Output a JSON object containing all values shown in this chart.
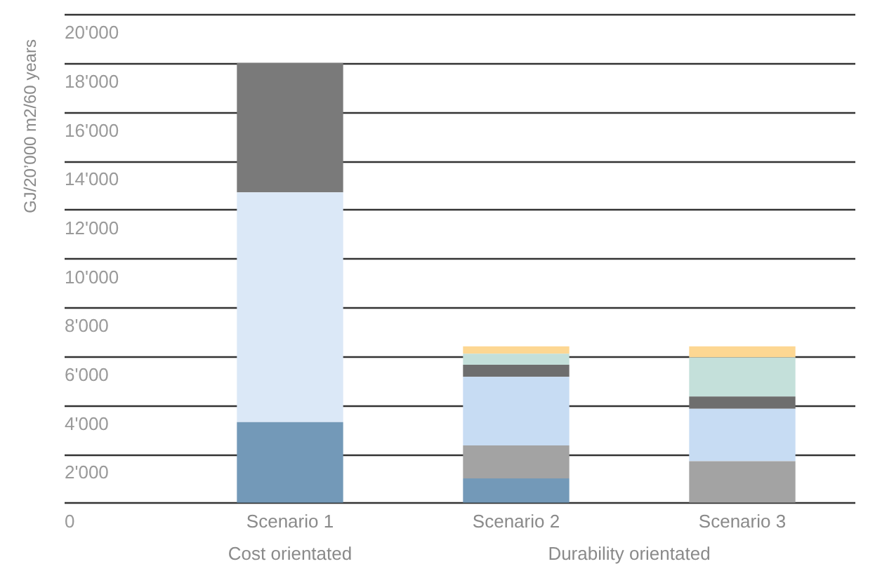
{
  "chart_data": {
    "type": "bar",
    "stacked": true,
    "ylabel": "GJ/20’000 m2/60 years",
    "categories": [
      "Scenario 1",
      "Scenario 2",
      "Scenario 3"
    ],
    "series": [
      {
        "color": "#7399b8",
        "values": [
          3300,
          1000,
          null
        ]
      },
      {
        "color": "#a3a3a3",
        "values": [
          null,
          1350,
          1700
        ]
      },
      {
        "color": "#c7dcf3",
        "colors": [
          "#dbe8f7",
          null,
          null
        ],
        "values": [
          9400,
          2800,
          2150
        ]
      },
      {
        "color": "#6e6e6e",
        "colors": [
          "#7a7a7a",
          null,
          null
        ],
        "values": [
          5300,
          500,
          500
        ]
      },
      {
        "color": "#c4e0da",
        "values": [
          null,
          450,
          1600
        ]
      },
      {
        "color": "#fdd792",
        "values": [
          null,
          300,
          450
        ]
      }
    ],
    "ylim": [
      0,
      20000
    ],
    "yticks": [
      0,
      {
        "value": 2000,
        "label": "2'000"
      },
      {
        "value": 4000,
        "label": "4'000"
      },
      {
        "value": 6000,
        "label": "6'000"
      },
      {
        "value": 8000,
        "label": "8'000"
      },
      {
        "value": 10000,
        "label": "10'000"
      },
      {
        "value": 12000,
        "label": "12'000"
      },
      {
        "value": 14000,
        "label": "14'000"
      },
      {
        "value": 16000,
        "label": "16'000"
      },
      {
        "value": 18000,
        "label": "18'000"
      },
      {
        "value": 20000,
        "label": "20'000"
      }
    ],
    "grid": "y",
    "legend": false,
    "annotations": [
      "Cost orientated",
      "Durability orientated"
    ]
  }
}
